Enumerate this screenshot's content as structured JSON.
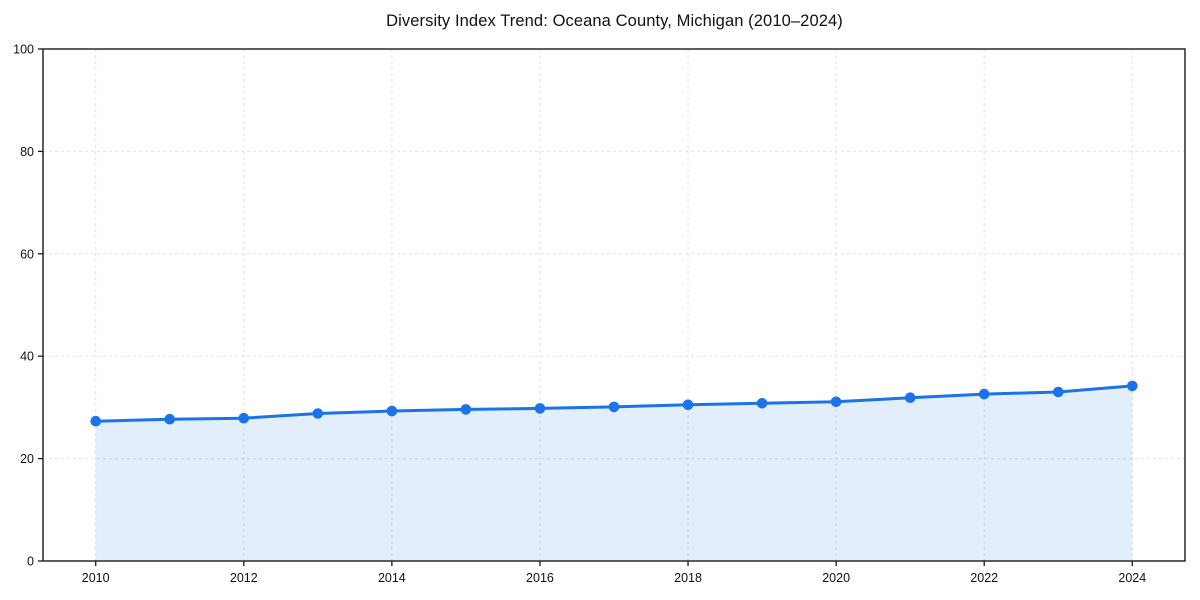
{
  "page": {
    "background_color": "#ffffff"
  },
  "chart_data": {
    "type": "line",
    "title": "Diversity Index Trend: Oceana County, Michigan (2010–2024)",
    "x": [
      2010,
      2011,
      2012,
      2013,
      2014,
      2015,
      2016,
      2017,
      2018,
      2019,
      2020,
      2021,
      2022,
      2023,
      2024
    ],
    "series": [
      {
        "name": "Diversity Index",
        "values": [
          27.3,
          27.7,
          27.9,
          28.8,
          29.3,
          29.6,
          29.8,
          30.1,
          30.5,
          30.8,
          31.1,
          31.9,
          32.6,
          33.0,
          34.2
        ]
      }
    ],
    "xlabel": "",
    "ylabel": "",
    "xlim": [
      2010,
      2024
    ],
    "ylim": [
      0,
      100
    ],
    "yticks": [
      0,
      20,
      40,
      60,
      80,
      100
    ],
    "xticks": [
      2010,
      2012,
      2014,
      2016,
      2018,
      2020,
      2022,
      2024
    ],
    "grid": "dashed",
    "legend_position": "none",
    "marker": "circle",
    "area_fill": true,
    "line_color": "#1a73e8",
    "fill_color": "rgba(26,115,232,0.12)",
    "grid_color": "#e2e2e2",
    "frame_color": "#1a1a1a",
    "tick_label_color": "#111111"
  }
}
